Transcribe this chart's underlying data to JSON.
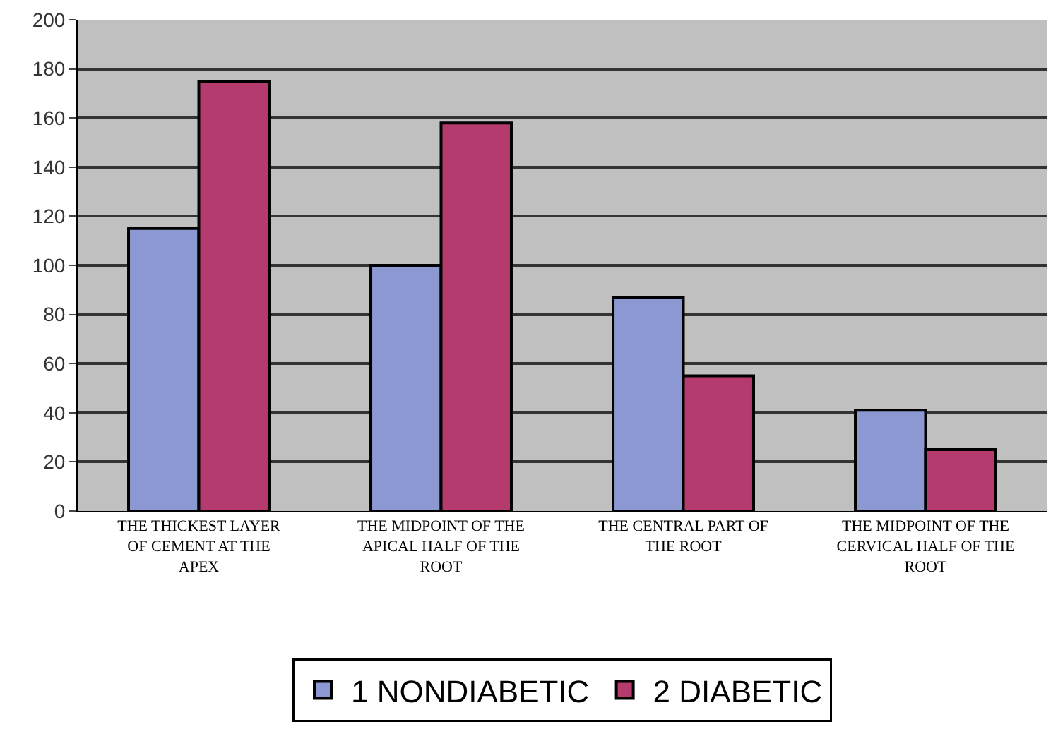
{
  "chart_data": {
    "type": "bar",
    "categories": [
      "THE THICKEST LAYER OF CEMENT AT THE APEX",
      "THE MIDPOINT OF THE APICAL HALF OF THE ROOT",
      "THE CENTRAL PART OF THE ROOT",
      "THE MIDPOINT OF THE CERVICAL HALF OF THE ROOT"
    ],
    "series": [
      {
        "name": "1 NONDIABETIC",
        "color": "#8c98d2",
        "values": [
          115,
          100,
          87,
          41
        ]
      },
      {
        "name": "2 DIABETIC",
        "color": "#b53a6e",
        "values": [
          175,
          158,
          55,
          25
        ]
      }
    ],
    "ylim": [
      0,
      200
    ],
    "yticks": [
      0,
      20,
      40,
      60,
      80,
      100,
      120,
      140,
      160,
      180,
      200
    ],
    "grid": "y",
    "legend": "bottom"
  }
}
